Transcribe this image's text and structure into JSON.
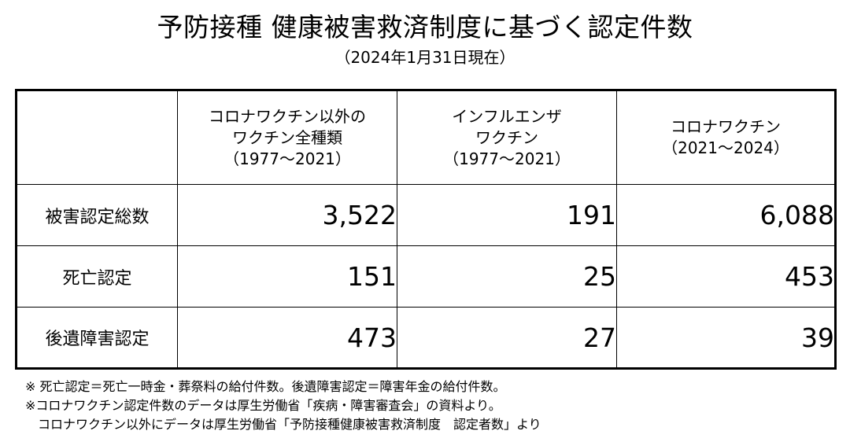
{
  "title": "予防接種 健康被害救済制度に基づく認定件数",
  "subtitle": "（2024年1月31日現在）",
  "table": {
    "corner": "",
    "columns": [
      {
        "lines": [
          "コロナワクチン以外の",
          "ワクチン全種類",
          "（1977〜2021）"
        ]
      },
      {
        "lines": [
          "インフルエンザ",
          "ワクチン",
          "（1977〜2021）"
        ]
      },
      {
        "lines": [
          "コロナワクチン",
          "（2021〜2024）"
        ]
      }
    ],
    "rows": [
      {
        "label": "被害認定総数",
        "values": [
          "3,522",
          "191",
          "6,088"
        ]
      },
      {
        "label": "死亡認定",
        "values": [
          "151",
          "25",
          "453"
        ]
      },
      {
        "label": "後遺障害認定",
        "values": [
          "473",
          "27",
          "39"
        ]
      }
    ]
  },
  "notes": [
    "※ 死亡認定＝死亡一時金・葬祭料の給付件数。後遺障害認定＝障害年金の給付件数。",
    "※コロナワクチン認定件数のデータは厚生労働省「疾病・障害審査会」の資料より。",
    "コロナワクチン以外にデータは厚生労働省「予防接種健康被害救済制度　認定者数」より"
  ]
}
